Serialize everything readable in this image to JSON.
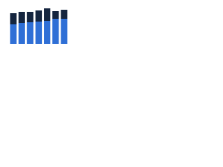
{
  "chart_data": {
    "type": "stacked-bar",
    "categories": [
      null,
      null,
      null,
      null,
      null,
      null,
      null
    ],
    "series": [
      {
        "color": "#2f6fd6",
        "values": [
          28,
          30,
          31,
          32,
          33,
          36,
          36
        ]
      },
      {
        "color": "#15253f",
        "values": [
          16,
          16,
          15,
          16,
          18,
          11,
          13
        ]
      }
    ],
    "ylim": [
      0,
      55
    ]
  }
}
